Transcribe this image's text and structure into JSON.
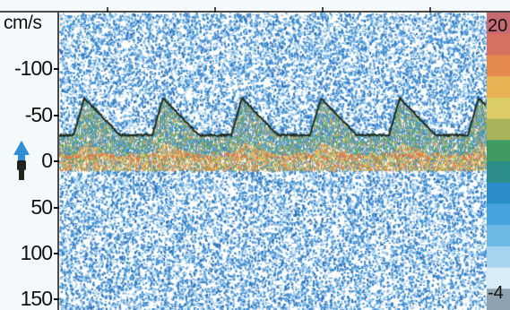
{
  "axis": {
    "unit": "cm/s",
    "ticks": [
      {
        "label": "-100",
        "value": -100
      },
      {
        "label": "-50",
        "value": -50
      },
      {
        "label": "0",
        "value": 0
      },
      {
        "label": "50",
        "value": 50
      },
      {
        "label": "100",
        "value": 100
      },
      {
        "label": "150",
        "value": 150
      }
    ],
    "range": [
      -175,
      155
    ]
  },
  "colorbar": {
    "top_label": "20",
    "bottom_label": "-4",
    "colors": [
      "#c66a74",
      "#d6705f",
      "#e48a4e",
      "#e7b352",
      "#dccc66",
      "#a9b45a",
      "#3f9a64",
      "#2e8f8a",
      "#2b8dc9",
      "#47a3dc",
      "#6db9e6",
      "#a6d3ef",
      "#d9ebf7",
      "#8fa2b0"
    ]
  },
  "colors": {
    "background": "#ffffff",
    "speckle_blue": "#3f8fd4",
    "speckle_light": "#9fcdef",
    "envelope": "#1d2a1e",
    "baseline_warm": "#e08a4a",
    "baseline_green": "#5aa86a",
    "direction_arrow": "#2f8fd6",
    "probe_icon": "#222222"
  },
  "icons": [
    "flow-direction-arrow-icon",
    "transducer-probe-icon"
  ]
}
